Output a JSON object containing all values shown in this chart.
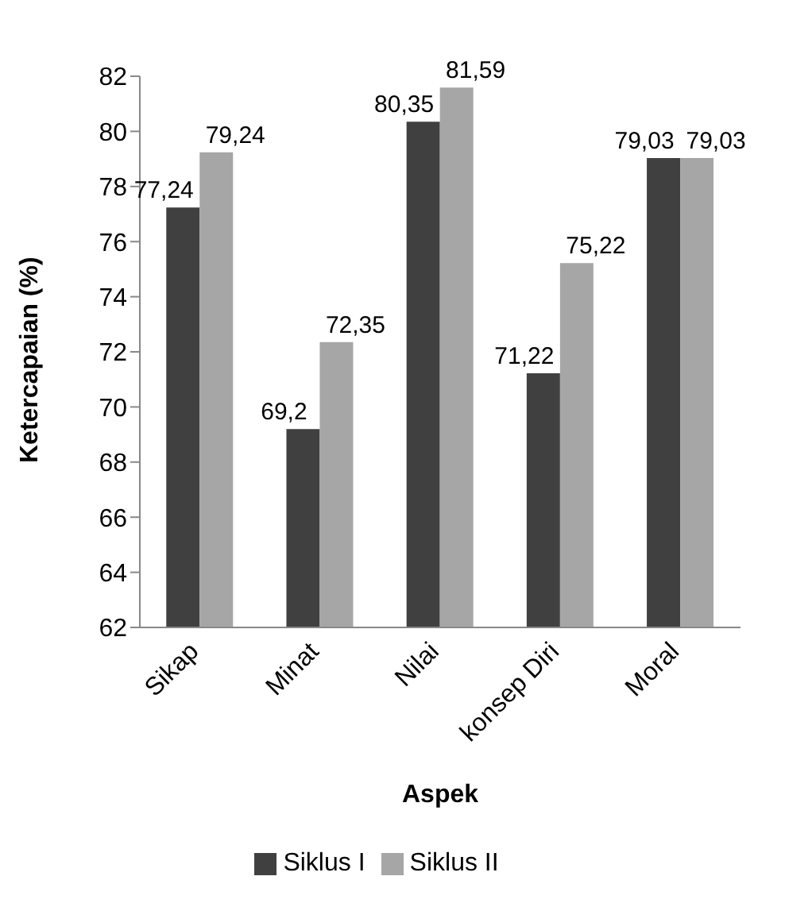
{
  "chart_data": {
    "type": "bar",
    "xlabel": "Aspek",
    "ylabel": "Ketercapaian (%)",
    "categories": [
      "Sikap",
      "Minat",
      "Nilai",
      "konsep Diri",
      "Moral"
    ],
    "series": [
      {
        "name": "Siklus I",
        "color": "#404040",
        "values": [
          77.24,
          69.2,
          80.35,
          71.22,
          79.03
        ],
        "value_labels": [
          "77,24",
          "69,2",
          "80,35",
          "71,22",
          "79,03"
        ]
      },
      {
        "name": "Siklus II",
        "color": "#a6a6a6",
        "values": [
          79.24,
          72.35,
          81.59,
          75.22,
          79.03
        ],
        "value_labels": [
          "79,24",
          "72,35",
          "81,59",
          "75,22",
          "79,03"
        ]
      }
    ],
    "ylim": [
      62,
      82
    ],
    "yticks": [
      62,
      64,
      66,
      68,
      70,
      72,
      74,
      76,
      78,
      80,
      82
    ],
    "grid": false,
    "legend": "bottom"
  }
}
